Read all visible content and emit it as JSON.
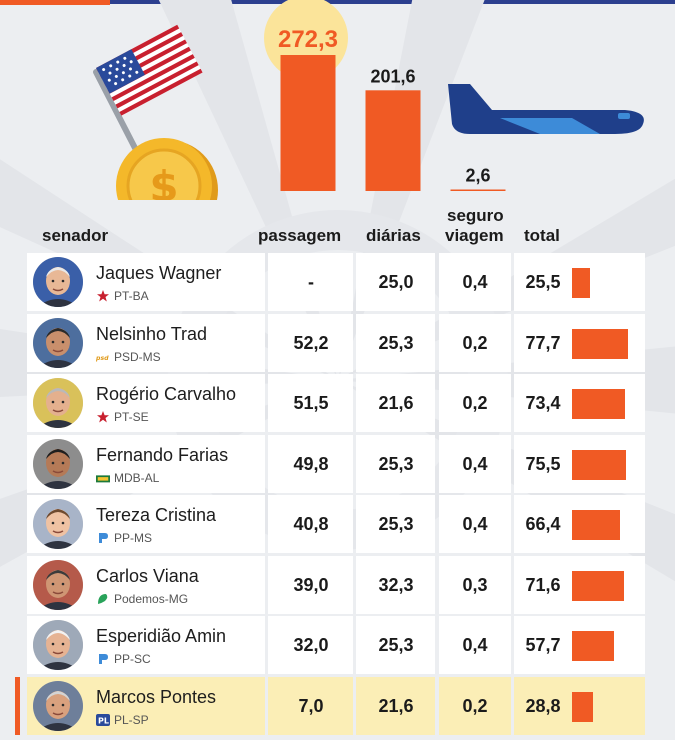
{
  "colors": {
    "accent": "#f05a24",
    "navy": "#2c3f8f",
    "highlight_row": "#fbeeb6",
    "coin": "#f4b82a"
  },
  "icons": [
    "usa-flag-icon",
    "coin-dollar-icon",
    "airplane-icon"
  ],
  "header": {
    "senador": "senador",
    "passagem": "passagem",
    "diarias": "diárias",
    "seguro_line1": "seguro",
    "seguro_line2": "viagem",
    "total": "total"
  },
  "chart_data": [
    {
      "type": "bar",
      "categories": [
        "passagem",
        "diárias",
        "seguro viagem"
      ],
      "values": [
        272.3,
        201.6,
        2.6
      ],
      "value_labels": [
        "272,3",
        "201,6",
        "2,6"
      ],
      "highlighted_category": "passagem"
    },
    {
      "type": "table",
      "columns": [
        "senador",
        "passagem",
        "diárias",
        "seguro viagem",
        "total"
      ],
      "rows": [
        {
          "name": "Jaques Wagner",
          "party": "PT-BA",
          "party_icon": "pt-star-icon",
          "passagem": "-",
          "diarias": "25,0",
          "seguro": "0,4",
          "total": "25,5",
          "total_value": 25.5
        },
        {
          "name": "Nelsinho Trad",
          "party": "PSD-MS",
          "party_icon": "psd-logo-icon",
          "passagem": "52,2",
          "diarias": "25,3",
          "seguro": "0,2",
          "total": "77,7",
          "total_value": 77.7
        },
        {
          "name": "Rogério Carvalho",
          "party": "PT-SE",
          "party_icon": "pt-star-icon",
          "passagem": "51,5",
          "diarias": "21,6",
          "seguro": "0,2",
          "total": "73,4",
          "total_value": 73.4
        },
        {
          "name": "Fernando Farias",
          "party": "MDB-AL",
          "party_icon": "mdb-logo-icon",
          "passagem": "49,8",
          "diarias": "25,3",
          "seguro": "0,4",
          "total": "75,5",
          "total_value": 75.5
        },
        {
          "name": "Tereza Cristina",
          "party": "PP-MS",
          "party_icon": "pp-logo-icon",
          "passagem": "40,8",
          "diarias": "25,3",
          "seguro": "0,4",
          "total": "66,4",
          "total_value": 66.4
        },
        {
          "name": "Carlos Viana",
          "party": "Podemos-MG",
          "party_icon": "podemos-logo-icon",
          "passagem": "39,0",
          "diarias": "32,3",
          "seguro": "0,3",
          "total": "71,6",
          "total_value": 71.6
        },
        {
          "name": "Esperidião Amin",
          "party": "PP-SC",
          "party_icon": "pp-logo-icon",
          "passagem": "32,0",
          "diarias": "25,3",
          "seguro": "0,4",
          "total": "57,7",
          "total_value": 57.7
        },
        {
          "name": "Marcos Pontes",
          "party": "PL-SP",
          "party_icon": "pl-logo-icon",
          "passagem": "7,0",
          "diarias": "21,6",
          "seguro": "0,2",
          "total": "28,8",
          "total_value": 28.8,
          "highlighted": true
        }
      ],
      "total_max_scale": 77.7
    }
  ]
}
